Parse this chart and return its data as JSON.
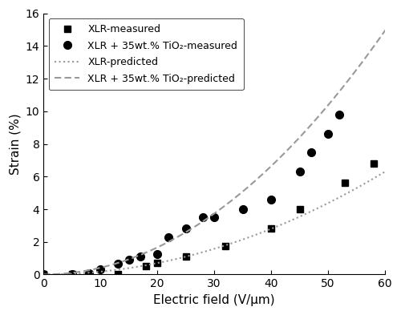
{
  "xlr_measured_x": [
    0,
    5,
    8,
    13,
    18,
    20,
    25,
    32,
    40,
    45,
    53,
    58
  ],
  "xlr_measured_y": [
    0,
    0,
    0,
    0,
    0.5,
    0.7,
    1.1,
    1.75,
    2.8,
    4.0,
    5.6,
    6.8
  ],
  "tio2_measured_x": [
    0,
    5,
    8,
    10,
    13,
    15,
    17,
    20,
    22,
    25,
    28,
    30,
    35,
    40,
    45,
    47,
    50,
    52
  ],
  "tio2_measured_y": [
    0,
    0,
    0.05,
    0.3,
    0.65,
    0.9,
    1.1,
    1.25,
    2.3,
    2.8,
    3.5,
    3.5,
    4.0,
    4.6,
    6.3,
    7.5,
    8.6,
    9.8
  ],
  "xlr_pred_coeff": 0.00175,
  "tio2_pred_coeff": 0.00415,
  "xlabel": "Electric field (V/μm)",
  "ylabel": "Strain (%)",
  "xlim": [
    0,
    60
  ],
  "ylim": [
    0,
    16
  ],
  "yticks": [
    0,
    2,
    4,
    6,
    8,
    10,
    12,
    14,
    16
  ],
  "xticks": [
    0,
    10,
    20,
    30,
    40,
    50,
    60
  ],
  "legend_labels": [
    "XLR-measured",
    "XLR + 35wt.% TiO₂-measured",
    "XLR-predicted",
    "XLR + 35wt.% TiO₂-predicted"
  ],
  "color_black": "#000000",
  "color_gray": "#999999",
  "marker_xlr": "s",
  "marker_tio2": "o",
  "markersize": 6,
  "pred_linewidth": 1.5,
  "figsize": [
    5.0,
    3.93
  ],
  "dpi": 100
}
